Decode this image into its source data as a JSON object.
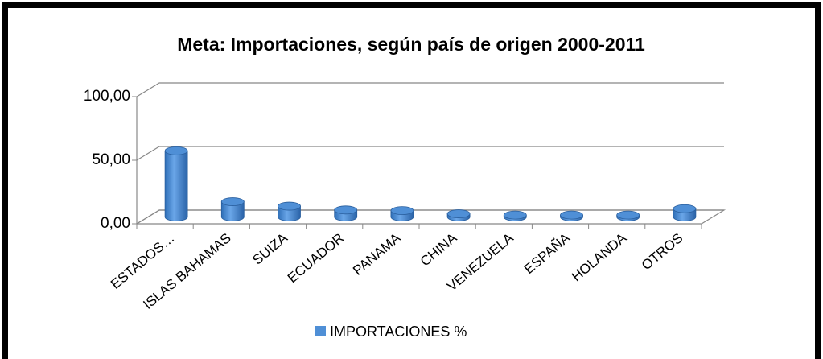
{
  "chart_data": {
    "type": "bar3d",
    "title": "Meta: Importaciones, según país de origen 2000-2011",
    "categories": [
      "ESTADOS…",
      "ISLAS BAHAMAS",
      "SUIZA",
      "ECUADOR",
      "PANAMA",
      "CHINA",
      "VENEZUELA",
      "ESPAÑA",
      "HOLANDA",
      "OTROS"
    ],
    "series": [
      {
        "name": "IMPORTACIONES %",
        "color": "#4f8fd6",
        "values": [
          52,
          12,
          8.5,
          5.5,
          5,
          2.5,
          1.5,
          1.5,
          1.5,
          6.5
        ]
      }
    ],
    "ylim": [
      0,
      100
    ],
    "yticks": [
      {
        "value": 0,
        "label": "0,00"
      },
      {
        "value": 50,
        "label": "50,00"
      },
      {
        "value": 100,
        "label": "100,00"
      }
    ],
    "grid": true,
    "legend": "bottom"
  }
}
